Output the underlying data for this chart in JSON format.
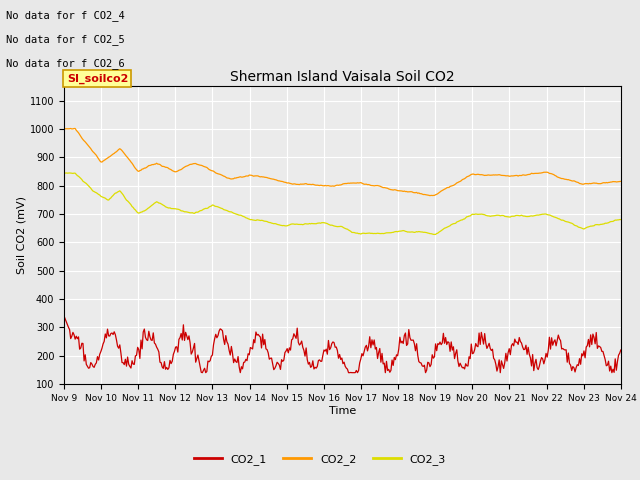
{
  "title": "Sherman Island Vaisala Soil CO2",
  "xlabel": "Time",
  "ylabel": "Soil CO2 (mV)",
  "ylim": [
    100,
    1150
  ],
  "yticks": [
    100,
    200,
    300,
    400,
    500,
    600,
    700,
    800,
    900,
    1000,
    1100
  ],
  "x_labels": [
    "Nov 9",
    "Nov 10",
    "Nov 11",
    "Nov 12",
    "Nov 13",
    "Nov 14",
    "Nov 15",
    "Nov 16",
    "Nov 17",
    "Nov 18",
    "Nov 19",
    "Nov 20",
    "Nov 21",
    "Nov 22",
    "Nov 23",
    "Nov 24"
  ],
  "colors": {
    "CO2_1": "#cc0000",
    "CO2_2": "#ff9900",
    "CO2_3": "#dddd00",
    "background": "#e8e8e8",
    "plot_bg": "#ebebeb"
  },
  "no_data_text": [
    "No data for f CO2_4",
    "No data for f CO2_5",
    "No data for f CO2_6"
  ],
  "legend_label": "SI_soilco2",
  "legend_bg": "#ffff99",
  "legend_border": "#cc9900"
}
